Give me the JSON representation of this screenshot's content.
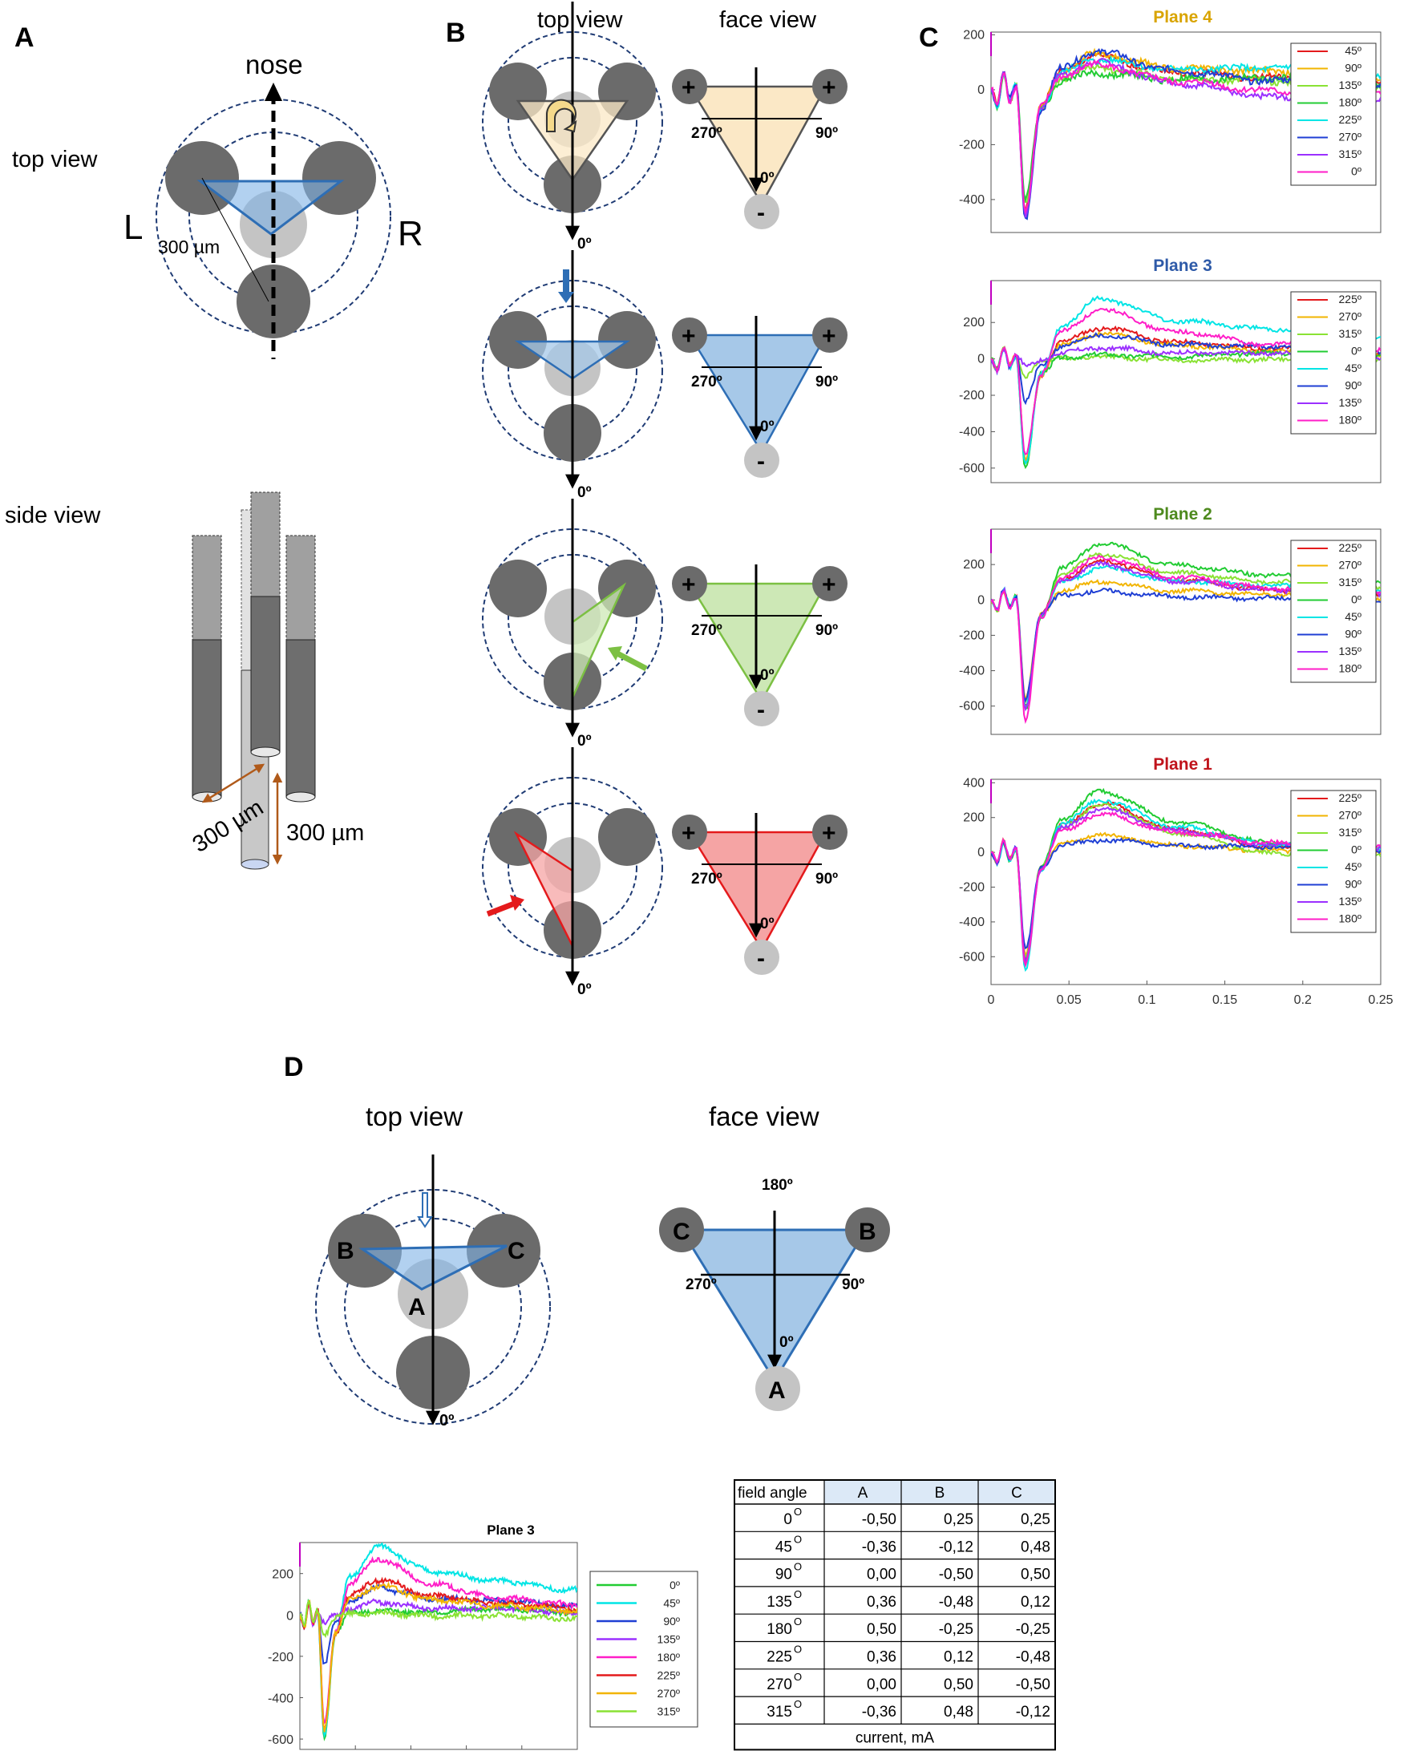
{
  "panel_a": {
    "letter": "A",
    "nose": "nose",
    "top_view": "top view",
    "side_view": "side view",
    "left": "L",
    "right": "R",
    "spacing": "300 µm",
    "spacing2": "300 µm",
    "spacing3": "300 µm"
  },
  "panel_b": {
    "letter": "B",
    "top_view": "top view",
    "face_view": "face view",
    "deg0": "0º",
    "deg90": "90º",
    "deg270": "270º",
    "plus": "+",
    "minus": "-"
  },
  "panel_c": {
    "letter": "C",
    "x_ticks": [
      "0",
      "0.05",
      "0.1",
      "0.15",
      "0.2",
      "0.25"
    ],
    "plots": [
      {
        "title": "Plane 4",
        "title_color": "#d9a400",
        "y_ticks": [
          "200",
          "0",
          "-200",
          "-400"
        ],
        "ymin": -520,
        "ymax": 210,
        "legend": [
          "45º",
          "90º",
          "135º",
          "180º",
          "225º",
          "270º",
          "315º",
          "0º"
        ]
      },
      {
        "title": "Plane 3",
        "title_color": "#2e5aa8",
        "y_ticks": [
          "200",
          "0",
          "-200",
          "-400",
          "-600"
        ],
        "ymin": -680,
        "ymax": 430,
        "legend": [
          "225º",
          "270º",
          "315º",
          "0º",
          "45º",
          "90º",
          "135º",
          "180º"
        ]
      },
      {
        "title": "Plane 2",
        "title_color": "#4e8a1e",
        "y_ticks": [
          "200",
          "0",
          "-200",
          "-400",
          "-600"
        ],
        "ymin": -760,
        "ymax": 400,
        "legend": [
          "225º",
          "270º",
          "315º",
          "0º",
          "45º",
          "90º",
          "135º",
          "180º"
        ]
      },
      {
        "title": "Plane 1",
        "title_color": "#c0141c",
        "y_ticks": [
          "400",
          "200",
          "0",
          "-200",
          "-400",
          "-600"
        ],
        "ymin": -760,
        "ymax": 420,
        "legend": [
          "225º",
          "270º",
          "315º",
          "0º",
          "45º",
          "90º",
          "135º",
          "180º"
        ]
      }
    ]
  },
  "panel_d": {
    "letter": "D",
    "top_view": "top view",
    "face_view": "face view",
    "a": "A",
    "b": "B",
    "c": "C",
    "deg0": "0º",
    "deg90": "90º",
    "deg180": "180º",
    "deg270": "270º",
    "plot_title": "Plane 3",
    "plot_y_ticks": [
      "200",
      "0",
      "-200",
      "-400",
      "-600"
    ],
    "plot_legend": [
      "0º",
      "45º",
      "90º",
      "135º",
      "180º",
      "225º",
      "270º",
      "315º"
    ],
    "table": {
      "header": [
        "field angle",
        "A",
        "B",
        "C"
      ],
      "rows": [
        [
          "0",
          "-0,50",
          "0,25",
          "0,25"
        ],
        [
          "45",
          "-0,36",
          "-0,12",
          "0,48"
        ],
        [
          "90",
          "0,00",
          "-0,50",
          "0,50"
        ],
        [
          "135",
          "0,36",
          "-0,48",
          "0,12"
        ],
        [
          "180",
          "0,50",
          "-0,25",
          "-0,25"
        ],
        [
          "225",
          "0,36",
          "0,12",
          "-0,48"
        ],
        [
          "270",
          "0,00",
          "0,50",
          "-0,50"
        ],
        [
          "315",
          "-0,36",
          "0,48",
          "-0,12"
        ]
      ],
      "degree_symbol": "O",
      "footer": "current, mA"
    }
  },
  "chart_data": [
    {
      "type": "line",
      "title": "Plane 4",
      "xlabel": "",
      "ylabel": "",
      "xlim": [
        0,
        0.25
      ],
      "ylim": [
        -520,
        210
      ],
      "series": [
        {
          "name": "45º",
          "color": "#e41a1c",
          "values_at_t": {
            "0.022": -430,
            "0.065": 120,
            "0.25": 20
          }
        },
        {
          "name": "90º",
          "color": "#f2b400",
          "values_at_t": {
            "0.022": -440,
            "0.065": 130,
            "0.25": 40
          }
        },
        {
          "name": "135º",
          "color": "#8ae234",
          "values_at_t": {
            "0.022": -420,
            "0.065": 80,
            "0.25": 10
          }
        },
        {
          "name": "180º",
          "color": "#22cc33",
          "values_at_t": {
            "0.022": -400,
            "0.065": 60,
            "0.25": 20
          }
        },
        {
          "name": "225º",
          "color": "#00e5e5",
          "values_at_t": {
            "0.022": -460,
            "0.065": 110,
            "0.25": 50
          }
        },
        {
          "name": "270º",
          "color": "#1f3fd4",
          "values_at_t": {
            "0.022": -470,
            "0.065": 140,
            "0.25": 10
          }
        },
        {
          "name": "315º",
          "color": "#9b30ff",
          "values_at_t": {
            "0.022": -450,
            "0.065": 100,
            "0.25": -40
          }
        },
        {
          "name": "0º",
          "color": "#ff1ec8",
          "values_at_t": {
            "0.022": -440,
            "0.065": 90,
            "0.25": -20
          }
        }
      ]
    },
    {
      "type": "line",
      "title": "Plane 3",
      "xlim": [
        0,
        0.25
      ],
      "ylim": [
        -680,
        430
      ],
      "series": [
        {
          "name": "225º",
          "color": "#e41a1c",
          "values_at_t": {
            "0.022": -560,
            "0.07": 170,
            "0.25": 30
          }
        },
        {
          "name": "270º",
          "color": "#f2b400",
          "values_at_t": {
            "0.022": -560,
            "0.07": 140,
            "0.25": 20
          }
        },
        {
          "name": "315º",
          "color": "#8ae234",
          "values_at_t": {
            "0.022": -90,
            "0.07": 10,
            "0.25": -20
          }
        },
        {
          "name": "0º",
          "color": "#22cc33",
          "values_at_t": {
            "0.022": -590,
            "0.07": 20,
            "0.25": 10
          }
        },
        {
          "name": "45º",
          "color": "#00e5e5",
          "values_at_t": {
            "0.022": -580,
            "0.07": 330,
            "0.25": 120
          }
        },
        {
          "name": "90º",
          "color": "#1f3fd4",
          "values_at_t": {
            "0.022": -240,
            "0.07": 130,
            "0.25": 40
          }
        },
        {
          "name": "135º",
          "color": "#9b30ff",
          "values_at_t": {
            "0.022": -40,
            "0.07": 60,
            "0.25": 10
          }
        },
        {
          "name": "180º",
          "color": "#ff1ec8",
          "values_at_t": {
            "0.022": -530,
            "0.07": 270,
            "0.25": 50
          }
        }
      ]
    },
    {
      "type": "line",
      "title": "Plane 2",
      "xlim": [
        0,
        0.25
      ],
      "ylim": [
        -760,
        400
      ],
      "series": [
        {
          "name": "225º",
          "color": "#e41a1c",
          "values_at_t": {
            "0.022": -600,
            "0.07": 220,
            "0.25": 30
          }
        },
        {
          "name": "270º",
          "color": "#f2b400",
          "values_at_t": {
            "0.022": -560,
            "0.07": 100,
            "0.25": 10
          }
        },
        {
          "name": "315º",
          "color": "#8ae234",
          "values_at_t": {
            "0.022": -580,
            "0.07": 260,
            "0.25": 70
          }
        },
        {
          "name": "0º",
          "color": "#22cc33",
          "values_at_t": {
            "0.022": -620,
            "0.07": 320,
            "0.25": 100
          }
        },
        {
          "name": "45º",
          "color": "#00e5e5",
          "values_at_t": {
            "0.022": -600,
            "0.07": 180,
            "0.25": 50
          }
        },
        {
          "name": "90º",
          "color": "#1f3fd4",
          "values_at_t": {
            "0.022": -560,
            "0.07": 50,
            "0.25": -10
          }
        },
        {
          "name": "135º",
          "color": "#9b30ff",
          "values_at_t": {
            "0.022": -620,
            "0.07": 200,
            "0.25": 30
          }
        },
        {
          "name": "180º",
          "color": "#ff1ec8",
          "values_at_t": {
            "0.022": -680,
            "0.07": 240,
            "0.25": 40
          }
        }
      ]
    },
    {
      "type": "line",
      "title": "Plane 1",
      "xlim": [
        0,
        0.25
      ],
      "ylim": [
        -760,
        420
      ],
      "series": [
        {
          "name": "225º",
          "color": "#e41a1c",
          "values_at_t": {
            "0.022": -600,
            "0.07": 280,
            "0.25": 10
          }
        },
        {
          "name": "270º",
          "color": "#f2b400",
          "values_at_t": {
            "0.022": -580,
            "0.07": 100,
            "0.25": -10
          }
        },
        {
          "name": "315º",
          "color": "#8ae234",
          "values_at_t": {
            "0.022": -600,
            "0.07": 270,
            "0.25": -20
          }
        },
        {
          "name": "0º",
          "color": "#22cc33",
          "values_at_t": {
            "0.022": -640,
            "0.07": 350,
            "0.25": 30
          }
        },
        {
          "name": "45º",
          "color": "#00e5e5",
          "values_at_t": {
            "0.022": -680,
            "0.07": 300,
            "0.25": 20
          }
        },
        {
          "name": "90º",
          "color": "#1f3fd4",
          "values_at_t": {
            "0.022": -560,
            "0.07": 70,
            "0.25": 10
          }
        },
        {
          "name": "135º",
          "color": "#9b30ff",
          "values_at_t": {
            "0.022": -620,
            "0.07": 250,
            "0.25": 20
          }
        },
        {
          "name": "180º",
          "color": "#ff1ec8",
          "values_at_t": {
            "0.022": -640,
            "0.07": 220,
            "0.25": 30
          }
        }
      ]
    },
    {
      "type": "line",
      "title": "Plane 3",
      "xlim": [
        0,
        0.25
      ],
      "ylim": [
        -650,
        350
      ],
      "series": [
        {
          "name": "0º",
          "color": "#22cc33",
          "values_at_t": {
            "0.022": -590,
            "0.07": 20,
            "0.25": 10
          }
        },
        {
          "name": "45º",
          "color": "#00e5e5",
          "values_at_t": {
            "0.022": -580,
            "0.07": 330,
            "0.25": 120
          }
        },
        {
          "name": "90º",
          "color": "#1f3fd4",
          "values_at_t": {
            "0.022": -240,
            "0.07": 130,
            "0.25": 40
          }
        },
        {
          "name": "135º",
          "color": "#9b30ff",
          "values_at_t": {
            "0.022": -40,
            "0.07": 60,
            "0.25": 10
          }
        },
        {
          "name": "180º",
          "color": "#ff1ec8",
          "values_at_t": {
            "0.022": -530,
            "0.07": 270,
            "0.25": 50
          }
        },
        {
          "name": "225º",
          "color": "#e41a1c",
          "values_at_t": {
            "0.022": -560,
            "0.07": 170,
            "0.25": 30
          }
        },
        {
          "name": "270º",
          "color": "#f2b400",
          "values_at_t": {
            "0.022": -560,
            "0.07": 140,
            "0.25": 20
          }
        },
        {
          "name": "315º",
          "color": "#8ae234",
          "values_at_t": {
            "0.022": -90,
            "0.07": 10,
            "0.25": -20
          }
        }
      ]
    }
  ]
}
